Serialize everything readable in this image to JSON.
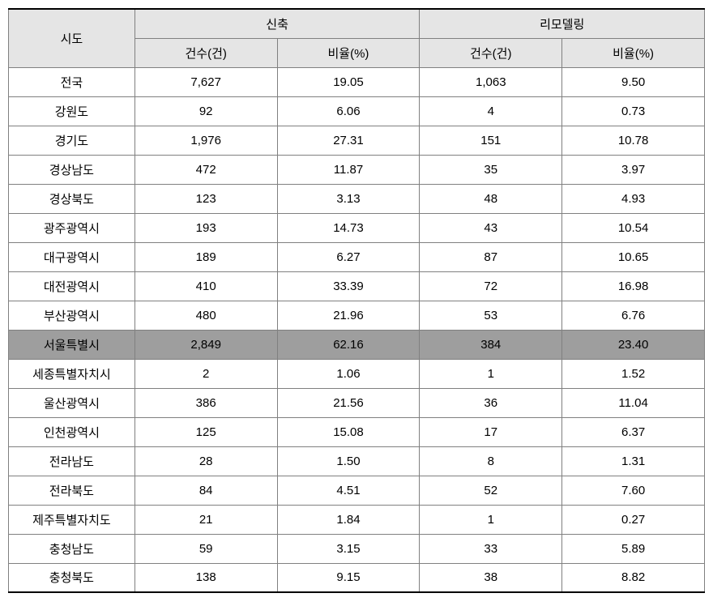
{
  "table": {
    "headers": {
      "sido": "시도",
      "new_construction": "신축",
      "remodeling": "리모델링",
      "count": "건수(건)",
      "ratio": "비율(%)"
    },
    "colors": {
      "header_bg": "#e5e5e5",
      "highlight_bg": "#9e9e9e",
      "border": "#808080",
      "thick_border": "#000000",
      "background": "#ffffff"
    },
    "font_size": 15,
    "column_widths": {
      "sido": 156,
      "data": 176
    },
    "highlight_row_index": 9,
    "rows": [
      {
        "sido": "전국",
        "new_count": "7,627",
        "new_ratio": "19.05",
        "remodel_count": "1,063",
        "remodel_ratio": "9.50"
      },
      {
        "sido": "강원도",
        "new_count": "92",
        "new_ratio": "6.06",
        "remodel_count": "4",
        "remodel_ratio": "0.73"
      },
      {
        "sido": "경기도",
        "new_count": "1,976",
        "new_ratio": "27.31",
        "remodel_count": "151",
        "remodel_ratio": "10.78"
      },
      {
        "sido": "경상남도",
        "new_count": "472",
        "new_ratio": "11.87",
        "remodel_count": "35",
        "remodel_ratio": "3.97"
      },
      {
        "sido": "경상북도",
        "new_count": "123",
        "new_ratio": "3.13",
        "remodel_count": "48",
        "remodel_ratio": "4.93"
      },
      {
        "sido": "광주광역시",
        "new_count": "193",
        "new_ratio": "14.73",
        "remodel_count": "43",
        "remodel_ratio": "10.54"
      },
      {
        "sido": "대구광역시",
        "new_count": "189",
        "new_ratio": "6.27",
        "remodel_count": "87",
        "remodel_ratio": "10.65"
      },
      {
        "sido": "대전광역시",
        "new_count": "410",
        "new_ratio": "33.39",
        "remodel_count": "72",
        "remodel_ratio": "16.98"
      },
      {
        "sido": "부산광역시",
        "new_count": "480",
        "new_ratio": "21.96",
        "remodel_count": "53",
        "remodel_ratio": "6.76"
      },
      {
        "sido": "서울특별시",
        "new_count": "2,849",
        "new_ratio": "62.16",
        "remodel_count": "384",
        "remodel_ratio": "23.40"
      },
      {
        "sido": "세종특별자치시",
        "new_count": "2",
        "new_ratio": "1.06",
        "remodel_count": "1",
        "remodel_ratio": "1.52"
      },
      {
        "sido": "울산광역시",
        "new_count": "386",
        "new_ratio": "21.56",
        "remodel_count": "36",
        "remodel_ratio": "11.04"
      },
      {
        "sido": "인천광역시",
        "new_count": "125",
        "new_ratio": "15.08",
        "remodel_count": "17",
        "remodel_ratio": "6.37"
      },
      {
        "sido": "전라남도",
        "new_count": "28",
        "new_ratio": "1.50",
        "remodel_count": "8",
        "remodel_ratio": "1.31"
      },
      {
        "sido": "전라북도",
        "new_count": "84",
        "new_ratio": "4.51",
        "remodel_count": "52",
        "remodel_ratio": "7.60"
      },
      {
        "sido": "제주특별자치도",
        "new_count": "21",
        "new_ratio": "1.84",
        "remodel_count": "1",
        "remodel_ratio": "0.27"
      },
      {
        "sido": "충청남도",
        "new_count": "59",
        "new_ratio": "3.15",
        "remodel_count": "33",
        "remodel_ratio": "5.89"
      },
      {
        "sido": "충청북도",
        "new_count": "138",
        "new_ratio": "9.15",
        "remodel_count": "38",
        "remodel_ratio": "8.82"
      }
    ]
  }
}
